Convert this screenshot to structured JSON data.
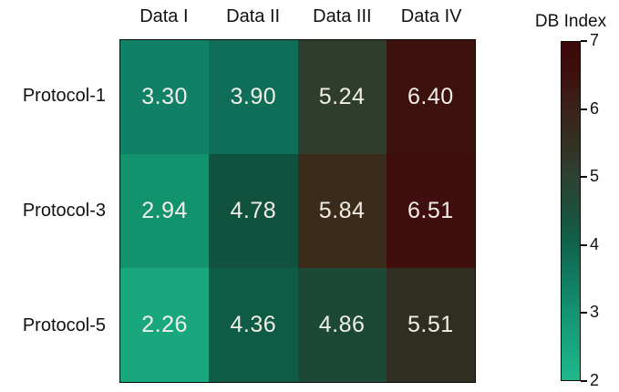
{
  "chart_data": {
    "type": "heatmap",
    "title": "",
    "rows": [
      "Protocol-1",
      "Protocol-3",
      "Protocol-5"
    ],
    "columns": [
      "Data I",
      "Data II",
      "Data III",
      "Data IV"
    ],
    "values": [
      [
        3.3,
        3.9,
        5.24,
        6.4
      ],
      [
        2.94,
        4.78,
        5.84,
        6.51
      ],
      [
        2.26,
        4.36,
        4.86,
        5.51
      ]
    ],
    "value_labels": [
      [
        "3.30",
        "3.90",
        "5.24",
        "6.40"
      ],
      [
        "2.94",
        "4.78",
        "5.84",
        "6.51"
      ],
      [
        "2.26",
        "4.36",
        "4.86",
        "5.51"
      ]
    ],
    "cell_colors": [
      [
        "#108166",
        "#0F6E57",
        "#2E3D2C",
        "#3E120C"
      ],
      [
        "#13926E",
        "#11523F",
        "#3A2B1B",
        "#400E0D"
      ],
      [
        "#19A87D",
        "#0E5C46",
        "#1B4837",
        "#302E20"
      ]
    ],
    "value_text_color": "#F1EEE8",
    "grid_border_color": "#0a0a0a",
    "background_color": "#ffffff",
    "colorbar": {
      "label": "DB Index",
      "min": 2,
      "max": 7,
      "ticks": [
        2,
        3,
        4,
        5,
        6,
        7
      ],
      "tick_labels": [
        "2",
        "3",
        "4",
        "5",
        "6",
        "7"
      ],
      "gradient_stops": [
        {
          "value": 2.0,
          "color": "#1FB98C"
        },
        {
          "value": 2.5,
          "color": "#18A67E"
        },
        {
          "value": 3.0,
          "color": "#149470"
        },
        {
          "value": 3.5,
          "color": "#117B60"
        },
        {
          "value": 4.0,
          "color": "#0F634B"
        },
        {
          "value": 4.5,
          "color": "#1D4F3C"
        },
        {
          "value": 5.0,
          "color": "#2D4233"
        },
        {
          "value": 5.5,
          "color": "#343023"
        },
        {
          "value": 6.0,
          "color": "#3A231A"
        },
        {
          "value": 6.5,
          "color": "#3E100E"
        },
        {
          "value": 7.0,
          "color": "#3B0808"
        }
      ]
    }
  }
}
